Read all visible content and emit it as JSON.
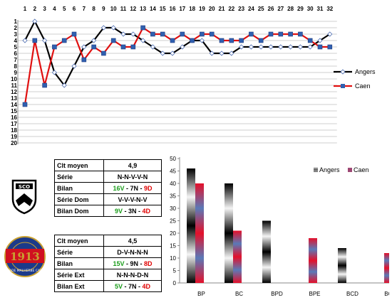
{
  "chart_data": [
    {
      "type": "line",
      "x": [
        1,
        2,
        3,
        4,
        5,
        6,
        7,
        8,
        9,
        10,
        11,
        12,
        13,
        14,
        15,
        16,
        17,
        18,
        19,
        20,
        21,
        22,
        23,
        24,
        25,
        26,
        27,
        28,
        29,
        30,
        31,
        32
      ],
      "series": [
        {
          "name": "Angers",
          "color": "#000000",
          "values": [
            4,
            1,
            4,
            9,
            11,
            8,
            5,
            4,
            2,
            2,
            3,
            3,
            4,
            5,
            6,
            6,
            5,
            4,
            4,
            6,
            6,
            6,
            5,
            5,
            5,
            5,
            5,
            5,
            5,
            5,
            4,
            3
          ]
        },
        {
          "name": "Caen",
          "color": "#e01010",
          "values": [
            14,
            4,
            11,
            5,
            4,
            3,
            7,
            5,
            6,
            4,
            5,
            5,
            2,
            3,
            3,
            4,
            3,
            4,
            3,
            3,
            4,
            4,
            4,
            3,
            4,
            3,
            3,
            3,
            3,
            4,
            5,
            5
          ]
        }
      ],
      "xticks": [
        "1",
        "2",
        "3",
        "4",
        "5",
        "6",
        "7",
        "8",
        "9",
        "10",
        "11",
        "12",
        "13",
        "14",
        "15",
        "16",
        "17",
        "18",
        "19",
        "20",
        "21",
        "22",
        "23",
        "24",
        "25",
        "26",
        "27",
        "28",
        "29",
        "30",
        "31",
        "32"
      ],
      "yticks": [
        "1",
        "2",
        "3",
        "4",
        "5",
        "6",
        "7",
        "8",
        "9",
        "10",
        "11",
        "12",
        "13",
        "14",
        "15",
        "16",
        "17",
        "18",
        "19",
        "20"
      ],
      "ylim": [
        1,
        20
      ],
      "y_inverted": true,
      "grid": true,
      "legend": "right"
    },
    {
      "type": "bar",
      "categories": [
        "BP",
        "BC",
        "BPD",
        "BPE",
        "BCD",
        "BCE"
      ],
      "series": [
        {
          "name": "Angers",
          "color": "#000000",
          "values": [
            46,
            40,
            25,
            0,
            14,
            0
          ]
        },
        {
          "name": "Caen",
          "color": "#e01020",
          "values": [
            40,
            21,
            0,
            18,
            0,
            12
          ]
        }
      ],
      "yticks": [
        "0",
        "5",
        "10",
        "15",
        "20",
        "25",
        "30",
        "35",
        "40",
        "45",
        "50"
      ],
      "ylim": [
        0,
        50
      ],
      "grid": false,
      "legend": "top-right"
    }
  ],
  "tables": {
    "angers": {
      "clt_label": "Clt moyen",
      "clt_value": "4,9",
      "serie_label": "Série",
      "serie_value": "N-N-V-V-N",
      "bilan_label": "Bilan",
      "bilan_v": "16V",
      "bilan_n": "7N",
      "bilan_d": "9D",
      "serie2_label": "Série Dom",
      "serie2_value": "V-V-V-N-V",
      "bilan2_label": "Bilan Dom",
      "bilan2_v": "9V",
      "bilan2_n": "3N",
      "bilan2_d": "4D",
      "sep": " - "
    },
    "caen": {
      "clt_label": "Clt moyen",
      "clt_value": "4,5",
      "serie_label": "Série",
      "serie_value": "D-V-N-N-N",
      "bilan_label": "Bilan",
      "bilan_v": "15V",
      "bilan_n": "9N",
      "bilan_d": "8D",
      "serie2_label": "Série Ext",
      "serie2_value": "N-N-N-D-N",
      "bilan2_label": "Bilan Ext",
      "bilan2_v": "5V",
      "bilan2_n": "7N",
      "bilan2_d": "4D",
      "sep": " - "
    }
  },
  "logos": {
    "angers": {
      "text": "SCO",
      "colors": [
        "#000000",
        "#ffffff"
      ]
    },
    "caen": {
      "year": "1913",
      "ring_text": "STADE MALHERBE CAEN",
      "colors": [
        "#1c3a8a",
        "#d01020",
        "#c8a030"
      ]
    }
  }
}
